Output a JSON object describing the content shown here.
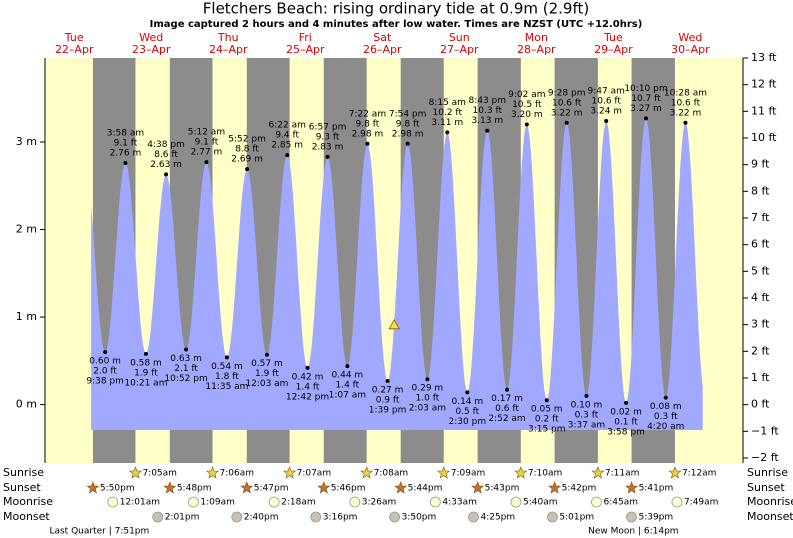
{
  "chart_data": {
    "type": "area",
    "title": "Fletchers Beach: rising  ordinary tide at 0.9m (2.9ft)",
    "subtitle": "Image captured 2 hours and 4 minutes after low water. Times are NZST (UTC +12.0hrs)",
    "color": "#a0a8ff",
    "days": [
      {
        "name": "Tue",
        "date": "22–Apr"
      },
      {
        "name": "Wed",
        "date": "23–Apr"
      },
      {
        "name": "Thu",
        "date": "24–Apr"
      },
      {
        "name": "Fri",
        "date": "25–Apr"
      },
      {
        "name": "Sat",
        "date": "26–Apr"
      },
      {
        "name": "Sun",
        "date": "27–Apr"
      },
      {
        "name": "Mon",
        "date": "28–Apr"
      },
      {
        "name": "Tue",
        "date": "29–Apr"
      },
      {
        "name": "Wed",
        "date": "30–Apr"
      }
    ],
    "xlim": [
      2.9,
      220.4
    ],
    "ylim": [
      -0.61,
      3.96
    ],
    "yticks": [
      {
        "value": 0,
        "label": "0 m"
      },
      {
        "value": 1,
        "label": "1 m"
      },
      {
        "value": 2,
        "label": "2 m"
      },
      {
        "value": 3,
        "label": "3 m"
      }
    ],
    "y2lim": [
      -2,
      13
    ],
    "y2ticks": [
      {
        "value": -2,
        "label": "−2 ft"
      },
      {
        "value": -1,
        "label": "−1 ft"
      },
      {
        "value": 0,
        "label": "0 ft"
      },
      {
        "value": 1,
        "label": "1 ft"
      },
      {
        "value": 2,
        "label": "2 ft"
      },
      {
        "value": 3,
        "label": "3 ft"
      },
      {
        "value": 4,
        "label": "4 ft"
      },
      {
        "value": 5,
        "label": "5 ft"
      },
      {
        "value": 6,
        "label": "6 ft"
      },
      {
        "value": 7,
        "label": "7 ft"
      },
      {
        "value": 8,
        "label": "8 ft"
      },
      {
        "value": 9,
        "label": "9 ft"
      },
      {
        "value": 10,
        "label": "10 ft"
      },
      {
        "value": 11,
        "label": "11 ft"
      },
      {
        "value": 12,
        "label": "12 ft"
      },
      {
        "value": 13,
        "label": "13 ft"
      }
    ],
    "tides": [
      {
        "kind": "low",
        "day": 0,
        "time": "9:38 pm",
        "m": {
          "value": 0.6,
          "label": "0.60 m"
        },
        "ft": {
          "value": 2.0,
          "label": "2.0 ft"
        }
      },
      {
        "kind": "high",
        "day": 1,
        "time": "3:58 am",
        "m": {
          "value": 2.76,
          "label": "2.76 m"
        },
        "ft": {
          "value": 9.1,
          "label": "9.1 ft"
        }
      },
      {
        "kind": "low",
        "day": 1,
        "time": "10:21 am",
        "m": {
          "value": 0.58,
          "label": "0.58 m"
        },
        "ft": {
          "value": 1.9,
          "label": "1.9 ft"
        }
      },
      {
        "kind": "high",
        "day": 1,
        "time": "4:38 pm",
        "m": {
          "value": 2.63,
          "label": "2.63 m"
        },
        "ft": {
          "value": 8.6,
          "label": "8.6 ft"
        }
      },
      {
        "kind": "low",
        "day": 1,
        "time": "10:52 pm",
        "m": {
          "value": 0.63,
          "label": "0.63 m"
        },
        "ft": {
          "value": 2.1,
          "label": "2.1 ft"
        }
      },
      {
        "kind": "high",
        "day": 2,
        "time": "5:12 am",
        "m": {
          "value": 2.77,
          "label": "2.77 m"
        },
        "ft": {
          "value": 9.1,
          "label": "9.1 ft"
        }
      },
      {
        "kind": "low",
        "day": 2,
        "time": "11:35 am",
        "m": {
          "value": 0.54,
          "label": "0.54 m"
        },
        "ft": {
          "value": 1.8,
          "label": "1.8 ft"
        }
      },
      {
        "kind": "high",
        "day": 2,
        "time": "5:52 pm",
        "m": {
          "value": 2.69,
          "label": "2.69 m"
        },
        "ft": {
          "value": 8.8,
          "label": "8.8 ft"
        }
      },
      {
        "kind": "low",
        "day": 3,
        "time": "12:03 am",
        "m": {
          "value": 0.57,
          "label": "0.57 m"
        },
        "ft": {
          "value": 1.9,
          "label": "1.9 ft"
        }
      },
      {
        "kind": "high",
        "day": 3,
        "time": "6:22 am",
        "m": {
          "value": 2.85,
          "label": "2.85 m"
        },
        "ft": {
          "value": 9.4,
          "label": "9.4 ft"
        }
      },
      {
        "kind": "low",
        "day": 3,
        "time": "12:42 pm",
        "m": {
          "value": 0.42,
          "label": "0.42 m"
        },
        "ft": {
          "value": 1.4,
          "label": "1.4 ft"
        }
      },
      {
        "kind": "high",
        "day": 3,
        "time": "6:57 pm",
        "m": {
          "value": 2.83,
          "label": "2.83 m"
        },
        "ft": {
          "value": 9.3,
          "label": "9.3 ft"
        }
      },
      {
        "kind": "low",
        "day": 4,
        "time": "1:07 am",
        "m": {
          "value": 0.44,
          "label": "0.44 m"
        },
        "ft": {
          "value": 1.4,
          "label": "1.4 ft"
        }
      },
      {
        "kind": "high",
        "day": 4,
        "time": "7:22 am",
        "m": {
          "value": 2.98,
          "label": "2.98 m"
        },
        "ft": {
          "value": 9.8,
          "label": "9.8 ft"
        }
      },
      {
        "kind": "low",
        "day": 4,
        "time": "1:39 pm",
        "m": {
          "value": 0.27,
          "label": "0.27 m"
        },
        "ft": {
          "value": 0.9,
          "label": "0.9 ft"
        }
      },
      {
        "kind": "high",
        "day": 4,
        "time": "7:54 pm",
        "m": {
          "value": 2.98,
          "label": "2.98 m"
        },
        "ft": {
          "value": 9.8,
          "label": "9.8 ft"
        }
      },
      {
        "kind": "low",
        "day": 5,
        "time": "2:03 am",
        "m": {
          "value": 0.29,
          "label": "0.29 m"
        },
        "ft": {
          "value": 1.0,
          "label": "1.0 ft"
        }
      },
      {
        "kind": "high",
        "day": 5,
        "time": "8:15 am",
        "m": {
          "value": 3.11,
          "label": "3.11 m"
        },
        "ft": {
          "value": 10.2,
          "label": "10.2 ft"
        }
      },
      {
        "kind": "low",
        "day": 5,
        "time": "2:30 pm",
        "m": {
          "value": 0.14,
          "label": "0.14 m"
        },
        "ft": {
          "value": 0.5,
          "label": "0.5 ft"
        }
      },
      {
        "kind": "high",
        "day": 5,
        "time": "8:43 pm",
        "m": {
          "value": 3.13,
          "label": "3.13 m"
        },
        "ft": {
          "value": 10.3,
          "label": "10.3 ft"
        }
      },
      {
        "kind": "low",
        "day": 6,
        "time": "2:52 am",
        "m": {
          "value": 0.17,
          "label": "0.17 m"
        },
        "ft": {
          "value": 0.6,
          "label": "0.6 ft"
        }
      },
      {
        "kind": "high",
        "day": 6,
        "time": "9:02 am",
        "m": {
          "value": 3.2,
          "label": "3.20 m"
        },
        "ft": {
          "value": 10.5,
          "label": "10.5 ft"
        }
      },
      {
        "kind": "low",
        "day": 6,
        "time": "3:15 pm",
        "m": {
          "value": 0.05,
          "label": "0.05 m"
        },
        "ft": {
          "value": 0.2,
          "label": "0.2 ft"
        }
      },
      {
        "kind": "high",
        "day": 6,
        "time": "9:28 pm",
        "m": {
          "value": 3.22,
          "label": "3.22 m"
        },
        "ft": {
          "value": 10.6,
          "label": "10.6 ft"
        }
      },
      {
        "kind": "low",
        "day": 7,
        "time": "3:37 am",
        "m": {
          "value": 0.1,
          "label": "0.10 m"
        },
        "ft": {
          "value": 0.3,
          "label": "0.3 ft"
        }
      },
      {
        "kind": "high",
        "day": 7,
        "time": "9:47 am",
        "m": {
          "value": 3.24,
          "label": "3.24 m"
        },
        "ft": {
          "value": 10.6,
          "label": "10.6 ft"
        }
      },
      {
        "kind": "low",
        "day": 7,
        "time": "3:58 pm",
        "m": {
          "value": 0.02,
          "label": "0.02 m"
        },
        "ft": {
          "value": 0.1,
          "label": "0.1 ft"
        }
      },
      {
        "kind": "high",
        "day": 7,
        "time": "10:10 pm",
        "m": {
          "value": 3.27,
          "label": "3.27 m"
        },
        "ft": {
          "value": 10.7,
          "label": "10.7 ft"
        }
      },
      {
        "kind": "low",
        "day": 8,
        "time": "4:20 am",
        "m": {
          "value": 0.08,
          "label": "0.08 m"
        },
        "ft": {
          "value": 0.3,
          "label": "0.3 ft"
        }
      },
      {
        "kind": "high",
        "day": 8,
        "time": "10:28 am",
        "m": {
          "value": 3.22,
          "label": "3.22 m"
        },
        "ft": {
          "value": 10.6,
          "label": "10.6 ft"
        }
      }
    ],
    "marker": {
      "value": 0.9,
      "x": 111.7
    },
    "row_labels": {
      "sunrise": "Sunrise",
      "sunset": "Sunset",
      "moonrise": "Moonrise",
      "moonset": "Moonset"
    },
    "sunrise": [
      {
        "day": 1,
        "time": "7:05am"
      },
      {
        "day": 2,
        "time": "7:06am"
      },
      {
        "day": 3,
        "time": "7:07am"
      },
      {
        "day": 4,
        "time": "7:08am"
      },
      {
        "day": 5,
        "time": "7:09am"
      },
      {
        "day": 6,
        "time": "7:10am"
      },
      {
        "day": 7,
        "time": "7:11am"
      },
      {
        "day": 8,
        "time": "7:12am"
      }
    ],
    "sunset": [
      {
        "day": 0,
        "time": "5:50pm"
      },
      {
        "day": 1,
        "time": "5:48pm"
      },
      {
        "day": 2,
        "time": "5:47pm"
      },
      {
        "day": 3,
        "time": "5:46pm"
      },
      {
        "day": 4,
        "time": "5:44pm"
      },
      {
        "day": 5,
        "time": "5:43pm"
      },
      {
        "day": 6,
        "time": "5:42pm"
      },
      {
        "day": 7,
        "time": "5:41pm"
      }
    ],
    "moonrise": [
      {
        "day": 1,
        "time": "12:01am"
      },
      {
        "day": 2,
        "time": "1:09am"
      },
      {
        "day": 3,
        "time": "2:18am"
      },
      {
        "day": 4,
        "time": "3:26am"
      },
      {
        "day": 5,
        "time": "4:33am"
      },
      {
        "day": 6,
        "time": "5:40am"
      },
      {
        "day": 7,
        "time": "6:45am"
      },
      {
        "day": 8,
        "time": "7:49am"
      }
    ],
    "moonset": [
      {
        "day": 1,
        "time": "2:01pm"
      },
      {
        "day": 2,
        "time": "2:40pm"
      },
      {
        "day": 3,
        "time": "3:16pm"
      },
      {
        "day": 4,
        "time": "3:50pm"
      },
      {
        "day": 5,
        "time": "4:25pm"
      },
      {
        "day": 6,
        "time": "5:01pm"
      },
      {
        "day": 7,
        "time": "5:39pm"
      }
    ],
    "phases": [
      {
        "day": 0,
        "text": "Last Quarter | 7:51pm"
      },
      {
        "day": 7,
        "text": "New Moon | 6:14pm"
      }
    ]
  }
}
